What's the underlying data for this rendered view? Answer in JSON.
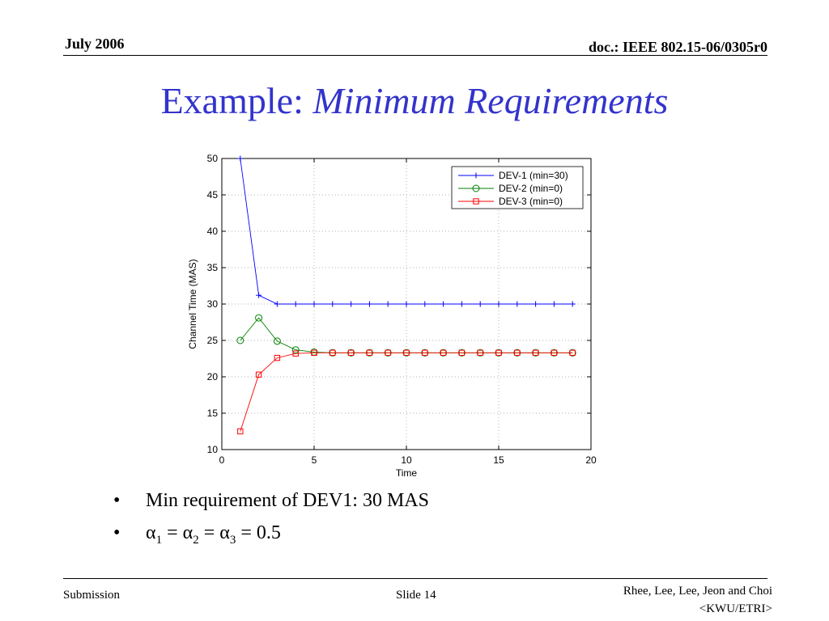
{
  "header": {
    "date": "July 2006",
    "doc": "doc.: IEEE 802.15-06/0305r0"
  },
  "title": {
    "plain": "Example: ",
    "italic": "Minimum Requirements"
  },
  "bullets": {
    "b1": "Min requirement of DEV1: 30 MAS",
    "alpha": "α",
    "s1": "1",
    "s2": "2",
    "s3": "3",
    "eq": " = ",
    "value": "0.5"
  },
  "footer": {
    "left": "Submission",
    "center": "Slide 14",
    "right1": "Rhee, Lee, Lee, Jeon and Choi",
    "right2": "<KWU/ETRI>"
  },
  "chart_data": {
    "type": "line",
    "xlabel": "Time",
    "ylabel": "Channel Time (MAS)",
    "xlim": [
      0,
      20
    ],
    "ylim": [
      10,
      50
    ],
    "xticks": [
      0,
      5,
      10,
      15,
      20
    ],
    "yticks": [
      10,
      15,
      20,
      25,
      30,
      35,
      40,
      45,
      50
    ],
    "grid": true,
    "legend_position": "top-right",
    "x": [
      1,
      2,
      3,
      4,
      5,
      6,
      7,
      8,
      9,
      10,
      11,
      12,
      13,
      14,
      15,
      16,
      17,
      18,
      19
    ],
    "series": [
      {
        "name": "DEV-1 (min=30)",
        "color": "#0000ff",
        "marker": "plus",
        "values": [
          50,
          31.2,
          30,
          30,
          30,
          30,
          30,
          30,
          30,
          30,
          30,
          30,
          30,
          30,
          30,
          30,
          30,
          30,
          30
        ]
      },
      {
        "name": "DEV-2 (min=0)",
        "color": "#008000",
        "marker": "circle",
        "values": [
          25,
          28.1,
          24.9,
          23.7,
          23.4,
          23.3,
          23.3,
          23.3,
          23.3,
          23.3,
          23.3,
          23.3,
          23.3,
          23.3,
          23.3,
          23.3,
          23.3,
          23.3,
          23.3
        ]
      },
      {
        "name": "DEV-3 (min=0)",
        "color": "#ff0000",
        "marker": "square",
        "values": [
          12.5,
          20.3,
          22.6,
          23.2,
          23.3,
          23.3,
          23.3,
          23.3,
          23.3,
          23.3,
          23.3,
          23.3,
          23.3,
          23.3,
          23.3,
          23.3,
          23.3,
          23.3,
          23.3
        ]
      }
    ]
  }
}
